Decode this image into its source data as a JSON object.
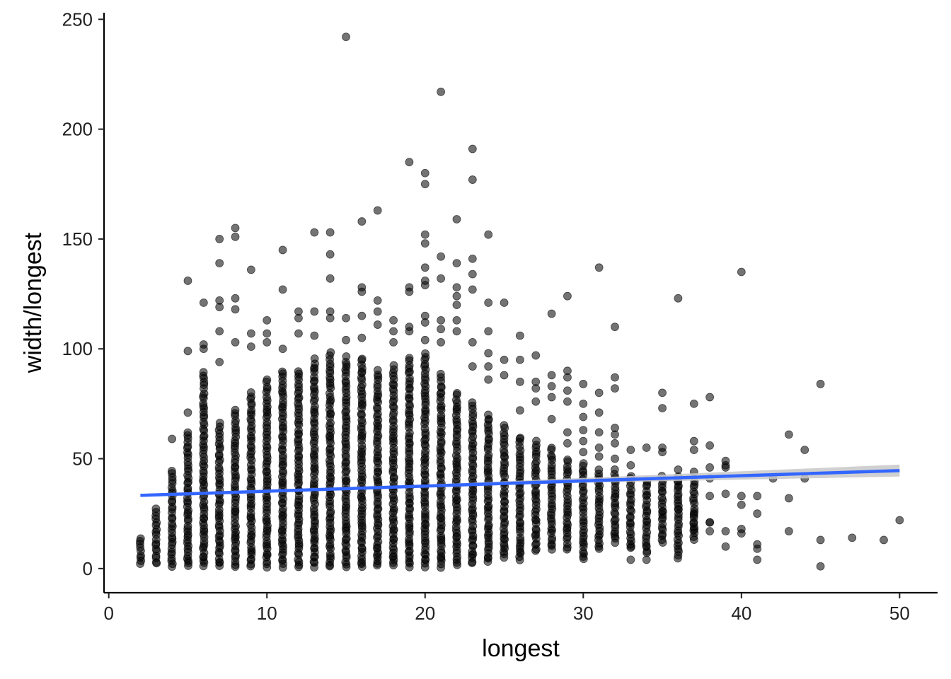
{
  "chart_data": {
    "type": "scatter",
    "title": "",
    "xlabel": "longest",
    "ylabel": "width/longest",
    "xlim": [
      -0.3,
      52.4
    ],
    "ylim": [
      -11,
      253
    ],
    "x_ticks": [
      0,
      10,
      20,
      30,
      40,
      50
    ],
    "y_ticks": [
      0,
      50,
      100,
      150,
      200,
      250
    ],
    "grid": false,
    "legend": "none",
    "point_color": "#000000",
    "point_opacity": 0.55,
    "columns": [
      {
        "x": 2,
        "ymin": 2,
        "ymax": 14
      },
      {
        "x": 3,
        "ymin": 2,
        "ymax": 27
      },
      {
        "x": 4,
        "ymin": 1,
        "ymax": 45
      },
      {
        "x": 5,
        "ymin": 1,
        "ymax": 62
      },
      {
        "x": 6,
        "ymin": 1,
        "ymax": 89
      },
      {
        "x": 7,
        "ymin": 1,
        "ymax": 66
      },
      {
        "x": 8,
        "ymin": 1,
        "ymax": 72
      },
      {
        "x": 9,
        "ymin": 1,
        "ymax": 80
      },
      {
        "x": 10,
        "ymin": 1,
        "ymax": 86
      },
      {
        "x": 11,
        "ymin": 1,
        "ymax": 90
      },
      {
        "x": 12,
        "ymin": 1,
        "ymax": 90
      },
      {
        "x": 13,
        "ymin": 1,
        "ymax": 95
      },
      {
        "x": 14,
        "ymin": 1,
        "ymax": 98
      },
      {
        "x": 15,
        "ymin": 1,
        "ymax": 96
      },
      {
        "x": 16,
        "ymin": 1,
        "ymax": 96
      },
      {
        "x": 17,
        "ymin": 1,
        "ymax": 90
      },
      {
        "x": 18,
        "ymin": 1,
        "ymax": 92
      },
      {
        "x": 19,
        "ymin": 1,
        "ymax": 96
      },
      {
        "x": 20,
        "ymin": 1,
        "ymax": 98
      },
      {
        "x": 21,
        "ymin": 1,
        "ymax": 88
      },
      {
        "x": 22,
        "ymin": 2,
        "ymax": 80
      },
      {
        "x": 23,
        "ymin": 2,
        "ymax": 75
      },
      {
        "x": 24,
        "ymin": 3,
        "ymax": 70
      },
      {
        "x": 25,
        "ymin": 5,
        "ymax": 65
      },
      {
        "x": 26,
        "ymin": 4,
        "ymax": 60
      },
      {
        "x": 27,
        "ymin": 8,
        "ymax": 58
      },
      {
        "x": 28,
        "ymin": 9,
        "ymax": 55
      },
      {
        "x": 29,
        "ymin": 9,
        "ymax": 50
      },
      {
        "x": 30,
        "ymin": 4,
        "ymax": 48
      },
      {
        "x": 31,
        "ymin": 9,
        "ymax": 45
      },
      {
        "x": 32,
        "ymin": 12,
        "ymax": 45
      },
      {
        "x": 33,
        "ymin": 9,
        "ymax": 42
      },
      {
        "x": 34,
        "ymin": 7,
        "ymax": 40
      },
      {
        "x": 35,
        "ymin": 12,
        "ymax": 42
      },
      {
        "x": 36,
        "ymin": 5,
        "ymax": 42
      },
      {
        "x": 37,
        "ymin": 13,
        "ymax": 40
      }
    ],
    "outliers": [
      {
        "x": 4,
        "y": 59
      },
      {
        "x": 5,
        "y": 131
      },
      {
        "x": 5,
        "y": 99
      },
      {
        "x": 5,
        "y": 71
      },
      {
        "x": 6,
        "y": 121
      },
      {
        "x": 6,
        "y": 102
      },
      {
        "x": 6,
        "y": 100
      },
      {
        "x": 7,
        "y": 150
      },
      {
        "x": 7,
        "y": 139
      },
      {
        "x": 7,
        "y": 122
      },
      {
        "x": 7,
        "y": 119
      },
      {
        "x": 7,
        "y": 108
      },
      {
        "x": 7,
        "y": 94
      },
      {
        "x": 8,
        "y": 155
      },
      {
        "x": 8,
        "y": 151
      },
      {
        "x": 8,
        "y": 123
      },
      {
        "x": 8,
        "y": 118
      },
      {
        "x": 8,
        "y": 103
      },
      {
        "x": 9,
        "y": 136
      },
      {
        "x": 9,
        "y": 107
      },
      {
        "x": 9,
        "y": 101
      },
      {
        "x": 10,
        "y": 113
      },
      {
        "x": 10,
        "y": 107
      },
      {
        "x": 10,
        "y": 103
      },
      {
        "x": 11,
        "y": 145
      },
      {
        "x": 11,
        "y": 127
      },
      {
        "x": 11,
        "y": 100
      },
      {
        "x": 12,
        "y": 117
      },
      {
        "x": 12,
        "y": 114
      },
      {
        "x": 12,
        "y": 107
      },
      {
        "x": 13,
        "y": 153
      },
      {
        "x": 13,
        "y": 117
      },
      {
        "x": 13,
        "y": 106
      },
      {
        "x": 14,
        "y": 153
      },
      {
        "x": 14,
        "y": 143
      },
      {
        "x": 14,
        "y": 132
      },
      {
        "x": 14,
        "y": 117
      },
      {
        "x": 14,
        "y": 114
      },
      {
        "x": 15,
        "y": 242
      },
      {
        "x": 15,
        "y": 114
      },
      {
        "x": 15,
        "y": 104
      },
      {
        "x": 16,
        "y": 158
      },
      {
        "x": 16,
        "y": 128
      },
      {
        "x": 16,
        "y": 126
      },
      {
        "x": 16,
        "y": 115
      },
      {
        "x": 16,
        "y": 105
      },
      {
        "x": 17,
        "y": 163
      },
      {
        "x": 17,
        "y": 122
      },
      {
        "x": 17,
        "y": 117
      },
      {
        "x": 17,
        "y": 111
      },
      {
        "x": 18,
        "y": 113
      },
      {
        "x": 18,
        "y": 108
      },
      {
        "x": 18,
        "y": 103
      },
      {
        "x": 19,
        "y": 185
      },
      {
        "x": 19,
        "y": 128
      },
      {
        "x": 19,
        "y": 126
      },
      {
        "x": 19,
        "y": 110
      },
      {
        "x": 19,
        "y": 108
      },
      {
        "x": 20,
        "y": 180
      },
      {
        "x": 20,
        "y": 175
      },
      {
        "x": 20,
        "y": 152
      },
      {
        "x": 20,
        "y": 148
      },
      {
        "x": 20,
        "y": 137
      },
      {
        "x": 20,
        "y": 131
      },
      {
        "x": 20,
        "y": 129
      },
      {
        "x": 20,
        "y": 115
      },
      {
        "x": 20,
        "y": 112
      },
      {
        "x": 20,
        "y": 104
      },
      {
        "x": 21,
        "y": 217
      },
      {
        "x": 21,
        "y": 142
      },
      {
        "x": 21,
        "y": 132
      },
      {
        "x": 21,
        "y": 113
      },
      {
        "x": 21,
        "y": 109
      },
      {
        "x": 21,
        "y": 103
      },
      {
        "x": 22,
        "y": 159
      },
      {
        "x": 22,
        "y": 139
      },
      {
        "x": 22,
        "y": 128
      },
      {
        "x": 22,
        "y": 124
      },
      {
        "x": 22,
        "y": 120
      },
      {
        "x": 22,
        "y": 113
      },
      {
        "x": 22,
        "y": 108
      },
      {
        "x": 23,
        "y": 191
      },
      {
        "x": 23,
        "y": 177
      },
      {
        "x": 23,
        "y": 141
      },
      {
        "x": 23,
        "y": 134
      },
      {
        "x": 23,
        "y": 127
      },
      {
        "x": 23,
        "y": 103
      },
      {
        "x": 23,
        "y": 92
      },
      {
        "x": 24,
        "y": 152
      },
      {
        "x": 24,
        "y": 121
      },
      {
        "x": 24,
        "y": 108
      },
      {
        "x": 24,
        "y": 98
      },
      {
        "x": 24,
        "y": 92
      },
      {
        "x": 24,
        "y": 86
      },
      {
        "x": 25,
        "y": 121
      },
      {
        "x": 25,
        "y": 95
      },
      {
        "x": 25,
        "y": 88
      },
      {
        "x": 26,
        "y": 106
      },
      {
        "x": 26,
        "y": 95
      },
      {
        "x": 26,
        "y": 85
      },
      {
        "x": 26,
        "y": 72
      },
      {
        "x": 27,
        "y": 97
      },
      {
        "x": 27,
        "y": 85
      },
      {
        "x": 27,
        "y": 82
      },
      {
        "x": 27,
        "y": 76
      },
      {
        "x": 28,
        "y": 116
      },
      {
        "x": 28,
        "y": 88
      },
      {
        "x": 28,
        "y": 83
      },
      {
        "x": 28,
        "y": 78
      },
      {
        "x": 28,
        "y": 68
      },
      {
        "x": 29,
        "y": 124
      },
      {
        "x": 29,
        "y": 90
      },
      {
        "x": 29,
        "y": 87
      },
      {
        "x": 29,
        "y": 81
      },
      {
        "x": 29,
        "y": 76
      },
      {
        "x": 29,
        "y": 62
      },
      {
        "x": 29,
        "y": 57
      },
      {
        "x": 30,
        "y": 84
      },
      {
        "x": 30,
        "y": 75
      },
      {
        "x": 30,
        "y": 69
      },
      {
        "x": 30,
        "y": 63
      },
      {
        "x": 30,
        "y": 58
      },
      {
        "x": 30,
        "y": 53
      },
      {
        "x": 31,
        "y": 137
      },
      {
        "x": 31,
        "y": 80
      },
      {
        "x": 31,
        "y": 71
      },
      {
        "x": 31,
        "y": 62
      },
      {
        "x": 31,
        "y": 55
      },
      {
        "x": 31,
        "y": 51
      },
      {
        "x": 32,
        "y": 110
      },
      {
        "x": 32,
        "y": 87
      },
      {
        "x": 32,
        "y": 82
      },
      {
        "x": 32,
        "y": 64
      },
      {
        "x": 32,
        "y": 61
      },
      {
        "x": 32,
        "y": 57
      },
      {
        "x": 32,
        "y": 50
      },
      {
        "x": 33,
        "y": 54
      },
      {
        "x": 33,
        "y": 47
      },
      {
        "x": 33,
        "y": 4
      },
      {
        "x": 34,
        "y": 55
      },
      {
        "x": 34,
        "y": 4
      },
      {
        "x": 35,
        "y": 80
      },
      {
        "x": 35,
        "y": 73
      },
      {
        "x": 35,
        "y": 55
      },
      {
        "x": 35,
        "y": 53
      },
      {
        "x": 35,
        "y": 26
      },
      {
        "x": 36,
        "y": 123
      },
      {
        "x": 36,
        "y": 45
      },
      {
        "x": 36,
        "y": 37
      },
      {
        "x": 36,
        "y": 27
      },
      {
        "x": 37,
        "y": 75
      },
      {
        "x": 37,
        "y": 58
      },
      {
        "x": 37,
        "y": 54
      },
      {
        "x": 37,
        "y": 44
      },
      {
        "x": 37,
        "y": 25
      },
      {
        "x": 37,
        "y": 19
      },
      {
        "x": 38,
        "y": 78
      },
      {
        "x": 38,
        "y": 56
      },
      {
        "x": 38,
        "y": 46
      },
      {
        "x": 38,
        "y": 41
      },
      {
        "x": 38,
        "y": 33
      },
      {
        "x": 38,
        "y": 21
      },
      {
        "x": 38,
        "y": 21
      },
      {
        "x": 38,
        "y": 17
      },
      {
        "x": 39,
        "y": 49
      },
      {
        "x": 39,
        "y": 47
      },
      {
        "x": 39,
        "y": 46
      },
      {
        "x": 39,
        "y": 34
      },
      {
        "x": 39,
        "y": 17
      },
      {
        "x": 39,
        "y": 10
      },
      {
        "x": 40,
        "y": 135
      },
      {
        "x": 40,
        "y": 33
      },
      {
        "x": 40,
        "y": 29
      },
      {
        "x": 40,
        "y": 18
      },
      {
        "x": 40,
        "y": 16
      },
      {
        "x": 41,
        "y": 33
      },
      {
        "x": 41,
        "y": 25
      },
      {
        "x": 41,
        "y": 11
      },
      {
        "x": 41,
        "y": 9
      },
      {
        "x": 41,
        "y": 4
      },
      {
        "x": 42,
        "y": 41
      },
      {
        "x": 43,
        "y": 61
      },
      {
        "x": 43,
        "y": 32
      },
      {
        "x": 43,
        "y": 17
      },
      {
        "x": 44,
        "y": 54
      },
      {
        "x": 44,
        "y": 41
      },
      {
        "x": 45,
        "y": 84
      },
      {
        "x": 45,
        "y": 13
      },
      {
        "x": 45,
        "y": 1
      },
      {
        "x": 47,
        "y": 14
      },
      {
        "x": 49,
        "y": 13
      },
      {
        "x": 50,
        "y": 22
      }
    ],
    "trend": {
      "method": "linear",
      "color": "#3366ff",
      "band_color": "#c8c8c8",
      "points": [
        {
          "x": 2,
          "y": 33.3,
          "ci_low": 32.6,
          "ci_high": 34.0
        },
        {
          "x": 20,
          "y": 37.9,
          "ci_low": 37.6,
          "ci_high": 38.2
        },
        {
          "x": 50,
          "y": 44.6,
          "ci_low": 41.9,
          "ci_high": 47.3
        }
      ]
    }
  }
}
